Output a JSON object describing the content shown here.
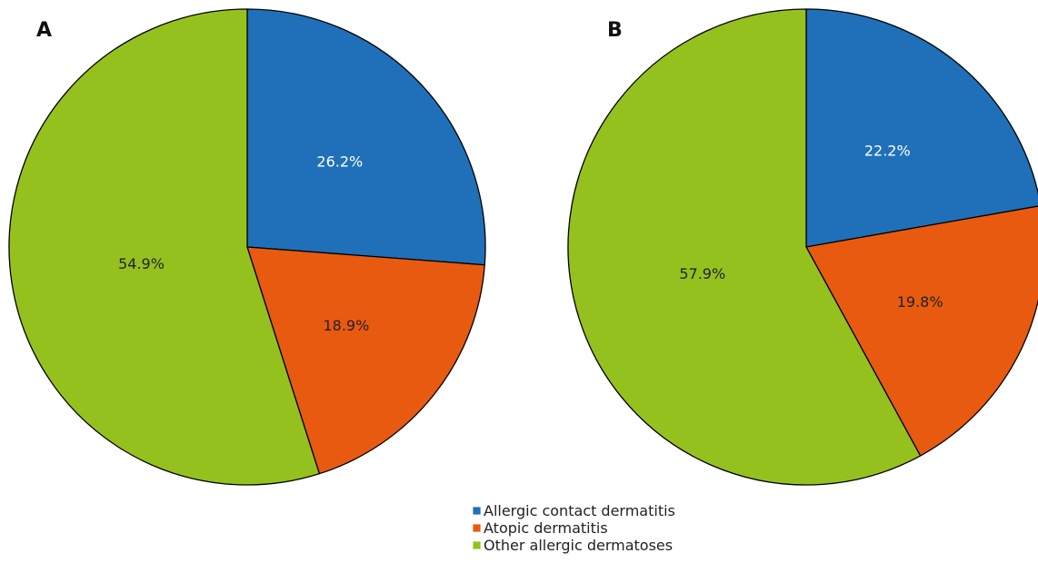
{
  "chart_data": [
    {
      "type": "pie",
      "panel_label": "A",
      "slices": [
        {
          "name": "Allergic contact dermatitis",
          "value": 26.2,
          "label": "26.2%",
          "color": "#1f70b8",
          "label_color": "#ffffff"
        },
        {
          "name": "Atopic dermatitis",
          "value": 18.9,
          "label": "18.9%",
          "color": "#e85a10",
          "label_color": "#222222"
        },
        {
          "name": "Other allergic dermatoses",
          "value": 54.9,
          "label": "54.9%",
          "color": "#95c11f",
          "label_color": "#222222"
        }
      ]
    },
    {
      "type": "pie",
      "panel_label": "B",
      "slices": [
        {
          "name": "Allergic contact dermatitis",
          "value": 22.2,
          "label": "22.2%",
          "color": "#1f70b8",
          "label_color": "#ffffff"
        },
        {
          "name": "Atopic dermatitis",
          "value": 19.8,
          "label": "19.8%",
          "color": "#e85a10",
          "label_color": "#222222"
        },
        {
          "name": "Other allergic dermatoses",
          "value": 57.9,
          "label": "57.9%",
          "color": "#95c11f",
          "label_color": "#222222"
        }
      ]
    }
  ],
  "legend": {
    "placement": "bottom-center",
    "items": [
      {
        "label": "Allergic contact dermatitis",
        "color": "#1f70b8"
      },
      {
        "label": "Atopic dermatitis",
        "color": "#e85a10"
      },
      {
        "label": "Other allergic dermatoses",
        "color": "#95c11f"
      }
    ]
  }
}
